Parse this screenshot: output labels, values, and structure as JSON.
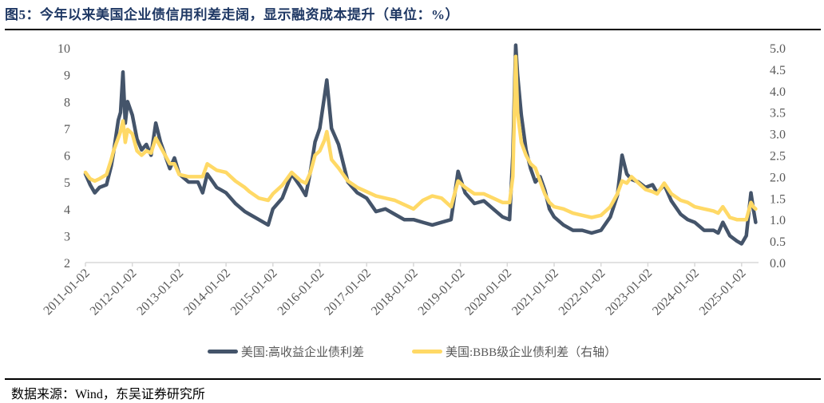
{
  "header": {
    "title": "图5：今年以来美国企业债信用利差走阔，显示融资成本提升（单位：%）"
  },
  "footer": {
    "source": "数据来源：Wind，东吴证券研究所"
  },
  "colors": {
    "high_yield": "#44546a",
    "bbb": "#ffd966",
    "axis": "#d9d9d9",
    "tick_text": "#595959",
    "title": "#1f3864"
  },
  "legend": {
    "items": [
      {
        "label": "美国:高收益企业债利差",
        "color": "#44546a"
      },
      {
        "label": "美国:BBB级企业债利差（右轴）",
        "color": "#ffd966"
      }
    ]
  },
  "chart_data": {
    "type": "line",
    "title": "今年以来美国企业债信用利差走阔，显示融资成本提升（单位：%）",
    "xlabel": "",
    "ylabel_left": "",
    "ylabel_right": "",
    "ylim_left": [
      2,
      10
    ],
    "ylim_right": [
      0.0,
      5.0
    ],
    "yticks_left": [
      "2",
      "3",
      "4",
      "5",
      "6",
      "7",
      "8",
      "9",
      "10"
    ],
    "yticks_right": [
      "0.0",
      "0.5",
      "1.0",
      "1.5",
      "2.0",
      "2.5",
      "3.0",
      "3.5",
      "4.0",
      "4.5",
      "5.0"
    ],
    "xticks": [
      "2011-01-02",
      "2012-01-02",
      "2013-01-02",
      "2014-01-02",
      "2015-01-02",
      "2016-01-02",
      "2017-01-02",
      "2018-01-02",
      "2019-01-02",
      "2020-01-02",
      "2021-01-02",
      "2022-01-02",
      "2023-01-02",
      "2024-01-02",
      "2025-01-02"
    ],
    "grid": false,
    "legend_position": "bottom",
    "x": [
      2011.0,
      2011.1,
      2011.2,
      2011.3,
      2011.45,
      2011.55,
      2011.6,
      2011.7,
      2011.75,
      2011.8,
      2011.85,
      2011.9,
      2012.0,
      2012.1,
      2012.2,
      2012.3,
      2012.4,
      2012.5,
      2012.6,
      2012.7,
      2012.8,
      2012.9,
      2013.0,
      2013.2,
      2013.4,
      2013.5,
      2013.6,
      2013.8,
      2014.0,
      2014.2,
      2014.4,
      2014.5,
      2014.7,
      2014.9,
      2015.0,
      2015.2,
      2015.4,
      2015.6,
      2015.7,
      2015.8,
      2015.9,
      2016.0,
      2016.1,
      2016.15,
      2016.25,
      2016.4,
      2016.6,
      2016.8,
      2017.0,
      2017.2,
      2017.4,
      2017.6,
      2017.8,
      2018.0,
      2018.2,
      2018.4,
      2018.6,
      2018.8,
      2018.95,
      2019.1,
      2019.3,
      2019.5,
      2019.7,
      2019.9,
      2020.05,
      2020.12,
      2020.18,
      2020.22,
      2020.3,
      2020.4,
      2020.5,
      2020.6,
      2020.7,
      2020.8,
      2020.9,
      2021.0,
      2021.2,
      2021.4,
      2021.6,
      2021.8,
      2022.0,
      2022.2,
      2022.35,
      2022.45,
      2022.55,
      2022.65,
      2022.8,
      2022.95,
      2023.1,
      2023.2,
      2023.35,
      2023.5,
      2023.7,
      2023.85,
      2024.0,
      2024.2,
      2024.4,
      2024.5,
      2024.6,
      2024.75,
      2024.9,
      2025.0,
      2025.1,
      2025.2,
      2025.25,
      2025.3
    ],
    "series": [
      {
        "name": "美国:高收益企业债利差",
        "axis": "left",
        "color": "#44546a",
        "values": [
          5.3,
          4.9,
          4.6,
          4.8,
          4.9,
          5.6,
          6.1,
          7.3,
          7.6,
          9.1,
          7.2,
          8.0,
          7.5,
          6.6,
          6.2,
          6.4,
          6.0,
          7.2,
          6.5,
          6.0,
          5.5,
          5.9,
          5.3,
          5.0,
          5.0,
          4.6,
          5.3,
          4.8,
          4.6,
          4.2,
          3.9,
          3.8,
          3.6,
          3.4,
          4.0,
          4.4,
          5.3,
          4.8,
          4.5,
          5.4,
          6.5,
          7.0,
          8.2,
          8.8,
          7.0,
          6.4,
          5.0,
          4.6,
          4.4,
          3.9,
          4.0,
          3.8,
          3.6,
          3.6,
          3.5,
          3.4,
          3.5,
          3.6,
          5.4,
          4.6,
          4.2,
          4.3,
          4.0,
          3.7,
          3.6,
          6.0,
          10.1,
          9.0,
          7.5,
          6.2,
          5.5,
          5.0,
          5.2,
          4.7,
          4.0,
          3.7,
          3.4,
          3.2,
          3.2,
          3.1,
          3.2,
          3.7,
          4.5,
          6.0,
          5.3,
          5.1,
          5.0,
          4.8,
          4.9,
          4.6,
          4.9,
          4.3,
          3.8,
          3.6,
          3.5,
          3.2,
          3.2,
          3.1,
          3.5,
          3.0,
          2.8,
          2.7,
          3.0,
          4.6,
          4.0,
          3.5
        ]
      },
      {
        "name": "美国:BBB级企业债利差（右轴）",
        "axis": "right",
        "color": "#ffd966",
        "values": [
          2.1,
          1.95,
          1.9,
          1.95,
          2.05,
          2.4,
          2.6,
          2.9,
          3.05,
          3.3,
          2.8,
          3.1,
          3.0,
          2.6,
          2.5,
          2.6,
          2.55,
          2.9,
          2.7,
          2.5,
          2.3,
          2.3,
          2.05,
          2.0,
          2.0,
          2.0,
          2.3,
          2.15,
          2.1,
          1.9,
          1.75,
          1.65,
          1.5,
          1.45,
          1.6,
          1.8,
          2.1,
          1.9,
          1.85,
          2.1,
          2.5,
          2.6,
          2.85,
          3.05,
          2.4,
          2.2,
          1.9,
          1.75,
          1.65,
          1.55,
          1.5,
          1.45,
          1.35,
          1.25,
          1.45,
          1.55,
          1.5,
          1.3,
          1.9,
          1.75,
          1.6,
          1.6,
          1.5,
          1.4,
          1.4,
          2.0,
          4.8,
          3.5,
          2.8,
          2.5,
          2.3,
          2.2,
          1.9,
          1.6,
          1.4,
          1.3,
          1.25,
          1.15,
          1.1,
          1.05,
          1.1,
          1.3,
          1.6,
          1.9,
          1.85,
          2.0,
          1.85,
          1.7,
          1.65,
          1.6,
          1.85,
          1.6,
          1.45,
          1.4,
          1.3,
          1.25,
          1.2,
          1.15,
          1.3,
          1.05,
          1.0,
          1.0,
          1.0,
          1.4,
          1.3,
          1.25
        ]
      }
    ]
  }
}
